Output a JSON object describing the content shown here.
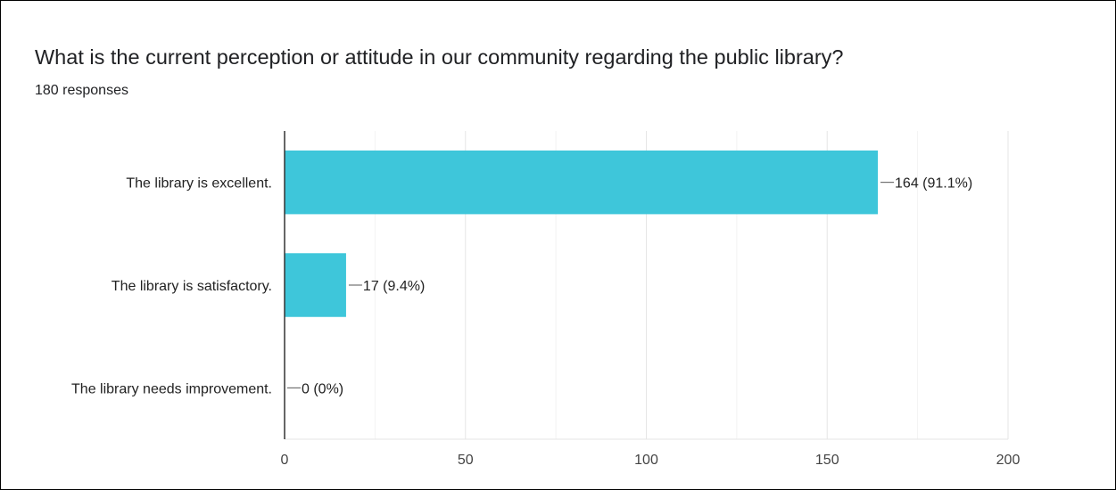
{
  "card": {
    "question": "What is the current perception or attitude in our community regarding the public library?",
    "responses": "180 responses"
  },
  "chart_data": {
    "type": "bar",
    "orientation": "horizontal",
    "categories": [
      "The library is excellent.",
      "The library is satisfactory.",
      "The library needs improvement."
    ],
    "values": [
      164,
      17,
      0
    ],
    "value_labels": [
      "164 (91.1%)",
      "17 (9.4%)",
      "0 (0%)"
    ],
    "xlim": [
      0,
      200
    ],
    "xticks": [
      0,
      50,
      100,
      150,
      200
    ],
    "grid": true,
    "bar_color": "#3ec6da"
  }
}
